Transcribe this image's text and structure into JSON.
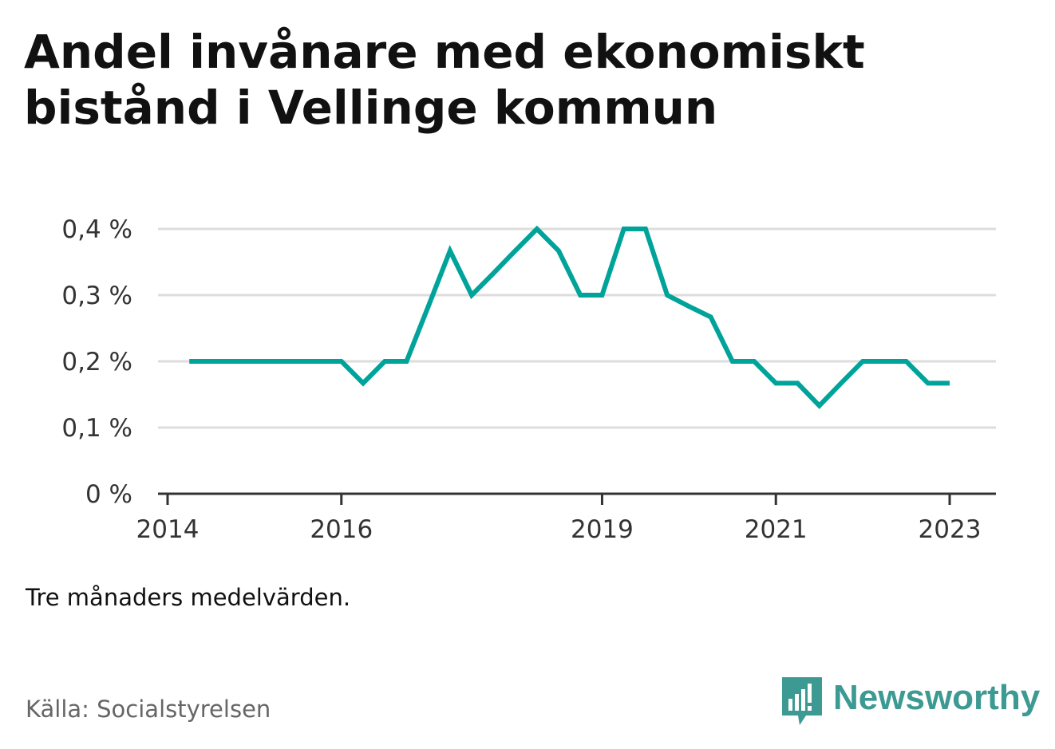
{
  "title": "Andel invånare med ekonomiskt bistånd i Vellinge kommun",
  "note": "Tre månaders medelvärden.",
  "source": "Källa: Socialstyrelsen",
  "brand": "Newsworthy",
  "colors": {
    "line": "#00a39a",
    "grid": "#dddddd",
    "axis": "#333333",
    "brand": "#3d9a93"
  },
  "chart_data": {
    "type": "line",
    "title": "Andel invånare med ekonomiskt bistånd i Vellinge kommun",
    "xlabel": "",
    "ylabel": "",
    "ylim": [
      0,
      0.4
    ],
    "grid": true,
    "y_ticks": [
      0,
      0.1,
      0.2,
      0.3,
      0.4
    ],
    "y_tick_labels": [
      "0 %",
      "0,1 %",
      "0,2 %",
      "0,3 %",
      "0,4 %"
    ],
    "x_ticks": [
      "2014",
      "2016",
      "2019",
      "2021",
      "2023"
    ],
    "x": [
      "2014-04",
      "2014-07",
      "2014-10",
      "2015-01",
      "2015-04",
      "2015-07",
      "2015-10",
      "2016-01",
      "2016-04",
      "2016-07",
      "2016-10",
      "2017-01",
      "2017-04",
      "2017-07",
      "2017-10",
      "2018-01",
      "2018-04",
      "2018-07",
      "2018-10",
      "2019-01",
      "2019-04",
      "2019-07",
      "2019-10",
      "2020-01",
      "2020-04",
      "2020-07",
      "2020-10",
      "2021-01",
      "2021-04",
      "2021-07",
      "2021-10",
      "2022-01",
      "2022-04",
      "2022-07",
      "2022-10",
      "2023-01"
    ],
    "values": [
      0.2,
      0.2,
      0.2,
      0.2,
      0.2,
      0.2,
      0.2,
      0.2,
      0.167,
      0.2,
      0.2,
      0.283,
      0.367,
      0.3,
      0.333,
      0.367,
      0.4,
      0.367,
      0.3,
      0.3,
      0.4,
      0.4,
      0.3,
      0.283,
      0.267,
      0.2,
      0.2,
      0.167,
      0.167,
      0.133,
      0.167,
      0.2,
      0.2,
      0.2,
      0.167,
      0.167
    ]
  }
}
